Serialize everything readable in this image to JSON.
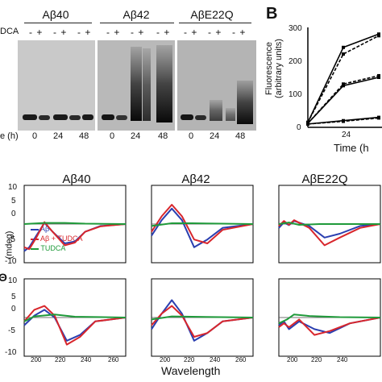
{
  "panelA": {
    "groups": [
      "Aβ40",
      "Aβ42",
      "AβE22Q"
    ],
    "tudca_row_label": "DCA",
    "signs": [
      "- +",
      "- +",
      "- +",
      "- +",
      "- +",
      "- +",
      "- +",
      "- +",
      "- +"
    ],
    "time_row_label": "e (h)",
    "time_labels": [
      "0",
      "24",
      "48",
      "0",
      "24",
      "48",
      "0",
      "24",
      "48"
    ]
  },
  "panelB": {
    "letter": "B",
    "ylabel_line1": "Fluorescence",
    "ylabel_line2": "(arbitrary units)",
    "xlabel": "Time (h",
    "yticks": [
      "300",
      "200",
      "100",
      "0"
    ],
    "xtick": "24",
    "chart_data": {
      "type": "line",
      "x": [
        0,
        24,
        48
      ],
      "xlabel": "Time (h)",
      "ylabel": "Fluorescence (arbitrary units)",
      "ylim": [
        0,
        300
      ],
      "series": [
        {
          "values": [
            15,
            240,
            280
          ]
        },
        {
          "values": [
            15,
            220,
            275
          ]
        },
        {
          "values": [
            12,
            125,
            150
          ]
        },
        {
          "values": [
            12,
            130,
            155
          ]
        },
        {
          "values": [
            10,
            20,
            30
          ]
        },
        {
          "values": [
            10,
            18,
            28
          ]
        }
      ]
    }
  },
  "panelC": {
    "titles": [
      "Aβ40",
      "Aβ42",
      "AβE22Q"
    ],
    "y_axis_partial": "(mdeg)",
    "y_axis_letter": "Θ",
    "xlabel": "Wavelength",
    "yticks": [
      "10",
      "5",
      "0",
      "-5",
      "-10"
    ],
    "xticks": [
      "200",
      "220",
      "240",
      "260"
    ],
    "legend": [
      "Aβ",
      "Aβ + TUDCA",
      "TUDCA"
    ],
    "colors": {
      "ab": "#2b3fb0",
      "ab_tudca": "#d8262c",
      "tudca": "#1f9a3a"
    }
  }
}
